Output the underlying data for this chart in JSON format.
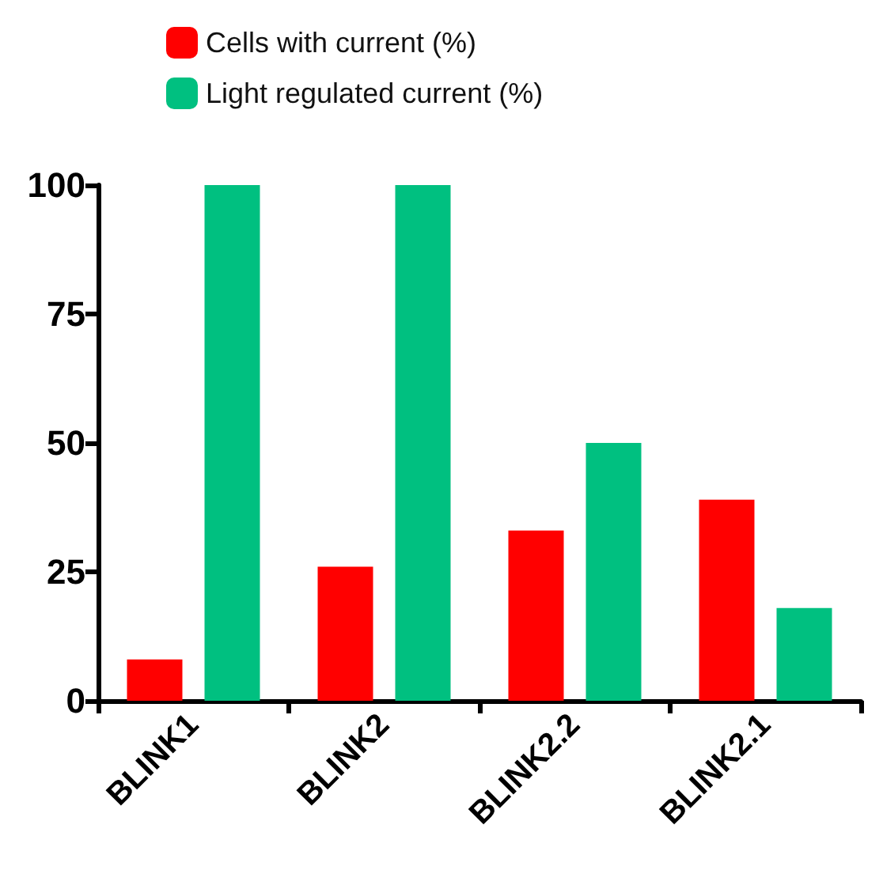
{
  "chart_data": {
    "type": "bar",
    "categories": [
      "BLINK1",
      "BLINK2",
      "BLINK2.2",
      "BLINK2.1"
    ],
    "series": [
      {
        "name": "Cells with current (%)",
        "color": "#ff0000",
        "values": [
          8,
          26,
          33,
          39
        ]
      },
      {
        "name": "Light regulated current (%)",
        "color": "#00c080",
        "values": [
          100,
          100,
          50,
          18
        ]
      }
    ],
    "ylim": [
      0,
      100
    ],
    "yticks": [
      0,
      25,
      50,
      75,
      100
    ],
    "grid": false,
    "legend": "top"
  }
}
